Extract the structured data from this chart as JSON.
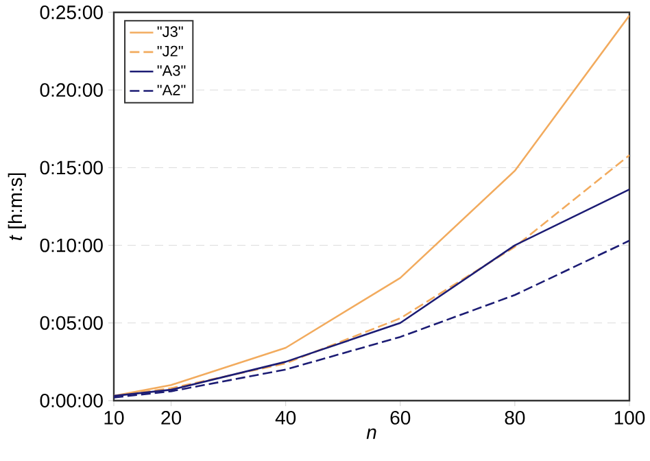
{
  "chart_data": {
    "type": "line",
    "xlabel": "n",
    "ylabel": "*t* [h:m:s]",
    "x": [
      10,
      20,
      40,
      60,
      80,
      100
    ],
    "series": [
      {
        "name": "\"J3\"",
        "color": "#f2ab5e",
        "line_style": "solid",
        "values": [
          0.3,
          1.0,
          3.4,
          7.9,
          14.8,
          24.8
        ]
      },
      {
        "name": "\"J2\"",
        "color": "#f2ab5e",
        "line_style": "dashed",
        "values": [
          0.3,
          0.8,
          2.4,
          5.3,
          9.9,
          15.8
        ]
      },
      {
        "name": "\"A3\"",
        "color": "#1c1c74",
        "line_style": "solid",
        "values": [
          0.3,
          0.7,
          2.5,
          5.0,
          10.0,
          13.6
        ]
      },
      {
        "name": "\"A2\"",
        "color": "#1c1c74",
        "line_style": "dashed",
        "values": [
          0.2,
          0.6,
          2.0,
          4.1,
          6.8,
          10.3
        ]
      }
    ],
    "xlim": [
      10,
      100
    ],
    "xticks": [
      10,
      20,
      40,
      60,
      80,
      100
    ],
    "ylim": [
      0,
      25
    ],
    "yticks": [
      {
        "value": 0,
        "label": "0:00:00"
      },
      {
        "value": 5,
        "label": "0:05:00"
      },
      {
        "value": 10,
        "label": "0:10:00"
      },
      {
        "value": 15,
        "label": "0:15:00"
      },
      {
        "value": 20,
        "label": "0:20:00"
      },
      {
        "value": 25,
        "label": "0:25:00"
      }
    ],
    "grid": "y",
    "legend": "top left",
    "marker": "none"
  }
}
